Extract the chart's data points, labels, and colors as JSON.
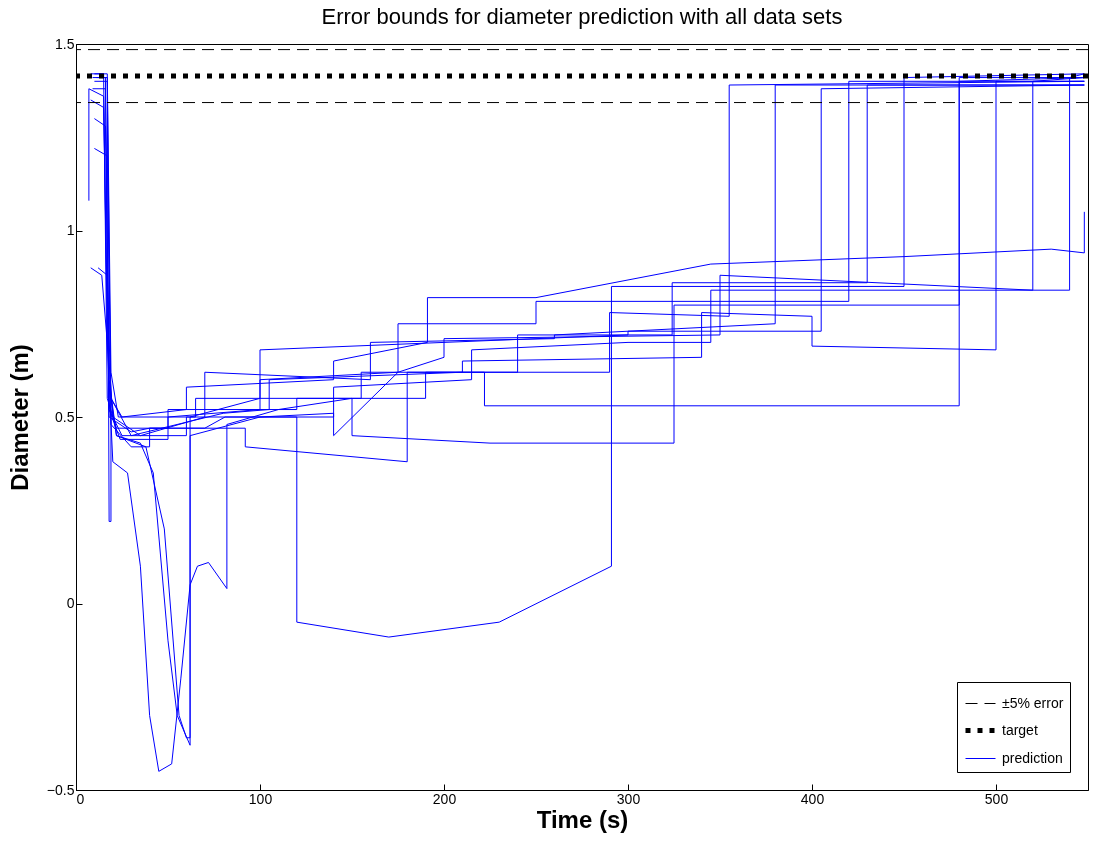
{
  "chart_data": {
    "type": "line",
    "title": "Error bounds for diameter prediction with all data sets",
    "xlabel": "Time (s)",
    "ylabel": "Diameter (m)",
    "xlim": [
      0,
      550
    ],
    "xticks": [
      0,
      100,
      200,
      300,
      400,
      500
    ],
    "ylim": [
      -0.5,
      1.5
    ],
    "yticks": [
      {
        "value": -0.5,
        "label": "−0.5"
      },
      0,
      0.5,
      1,
      1.5
    ],
    "grid": false,
    "legend": "bottom right",
    "marker": "none",
    "line_style": "solid",
    "ref_lines": [
      {
        "axis": "y",
        "value": 1.485,
        "label": "±5% error",
        "color": "#000000",
        "line_style": "dashed"
      },
      {
        "axis": "y",
        "value": 1.414,
        "label": "target",
        "color": "#000000",
        "line_style": "dotted"
      },
      {
        "axis": "y",
        "value": 1.343,
        "color": "#000000",
        "line_style": "dashed"
      }
    ],
    "series": [
      {
        "name": "prediction",
        "color": "#0000ff",
        "x": [
          8,
          15,
          17,
          22,
          50,
          50,
          120,
          120,
          190,
          190,
          290,
          290,
          355,
          355,
          548,
          null,
          9,
          16,
          18,
          25,
          60,
          60,
          140,
          140,
          215,
          215,
          300,
          345,
          345,
          540,
          540,
          548,
          null,
          10,
          17,
          19,
          30,
          40,
          40,
          92,
          92,
          180,
          180,
          240,
          240,
          324,
          324,
          430,
          430,
          548,
          null,
          9,
          16,
          18,
          30,
          40,
          70,
          81,
          120,
          120,
          170,
          230,
          291,
          291,
          450,
          450,
          548,
          null,
          8,
          14,
          17,
          20,
          28,
          35,
          40,
          45,
          52,
          57,
          62,
          66,
          72,
          82,
          82,
          110,
          150,
          150,
          225,
          325,
          325,
          480,
          480,
          548,
          null,
          10,
          16,
          18,
          22,
          35,
          42,
          50,
          55,
          62,
          62,
          100,
          140,
          140,
          175,
          200,
          200,
          350,
          350,
          520,
          520,
          548,
          null,
          10,
          17,
          19,
          22,
          38,
          48,
          56,
          60,
          62,
          62,
          100,
          100,
          175,
          175,
          250,
          250,
          420,
          420,
          548,
          null,
          12,
          17,
          19,
          25,
          60,
          60,
          140,
          140,
          191,
          191,
          250,
          345,
          450,
          530,
          548,
          548,
          null,
          10,
          17,
          19,
          23,
          65,
          65,
          155,
          155,
          222,
          222,
          480,
          480,
          548,
          null,
          8,
          15,
          18,
          24,
          50,
          50,
          100,
          100,
          300,
          300,
          405,
          405,
          548,
          null,
          11,
          17,
          18,
          19,
          19,
          30,
          80,
          105,
          105,
          210,
          210,
          340,
          340,
          400,
          400,
          500,
          500,
          548,
          null,
          7,
          7,
          15,
          17,
          20,
          35,
          70,
          70,
          160,
          160,
          260,
          260,
          380,
          380,
          548
        ],
        "values": [
          1.42,
          1.42,
          0.55,
          0.47,
          0.47,
          0.52,
          0.52,
          0.55,
          0.55,
          0.62,
          0.62,
          0.78,
          0.77,
          1.39,
          1.4,
          null,
          1.41,
          1.41,
          0.52,
          0.45,
          0.45,
          0.5,
          0.5,
          0.58,
          0.6,
          0.68,
          0.7,
          0.7,
          0.84,
          0.84,
          1.41,
          1.42,
          null,
          1.4,
          1.4,
          0.48,
          0.42,
          0.42,
          0.47,
          0.47,
          0.42,
          0.38,
          0.62,
          0.62,
          0.72,
          0.72,
          0.86,
          0.86,
          1.39,
          1.39,
          null,
          1.38,
          1.38,
          0.5,
          0.46,
          0.47,
          0.47,
          0.5,
          0.5,
          -0.05,
          -0.09,
          -0.05,
          0.1,
          0.85,
          0.85,
          1.41,
          1.42,
          null,
          0.9,
          0.88,
          0.7,
          0.38,
          0.35,
          0.1,
          -0.3,
          -0.45,
          -0.43,
          -0.2,
          0.05,
          0.1,
          0.11,
          0.04,
          0.48,
          0.52,
          0.55,
          0.45,
          0.43,
          0.43,
          0.8,
          0.8,
          1.41,
          1.41,
          null,
          1.3,
          1.28,
          0.6,
          0.45,
          0.43,
          0.35,
          -0.1,
          -0.3,
          -0.38,
          0.45,
          0.5,
          0.51,
          0.45,
          0.62,
          0.66,
          0.71,
          0.72,
          0.88,
          0.84,
          1.4,
          1.41,
          null,
          1.22,
          1.2,
          0.55,
          0.45,
          0.42,
          0.2,
          -0.3,
          -0.36,
          -0.36,
          0.5,
          0.55,
          0.6,
          0.62,
          0.75,
          0.75,
          0.81,
          0.81,
          1.4,
          1.4,
          null,
          0.9,
          0.88,
          0.55,
          0.5,
          0.52,
          0.58,
          0.6,
          0.65,
          0.7,
          0.82,
          0.82,
          0.91,
          0.93,
          0.95,
          0.94,
          1.05,
          null,
          1.42,
          1.42,
          0.62,
          0.5,
          0.5,
          0.55,
          0.55,
          0.62,
          0.62,
          0.53,
          0.53,
          1.4,
          1.41,
          null,
          1.35,
          1.33,
          0.52,
          0.44,
          0.44,
          0.5,
          0.52,
          0.68,
          0.72,
          0.73,
          0.73,
          1.38,
          1.39,
          null,
          1.41,
          1.41,
          0.22,
          0.22,
          0.55,
          0.45,
          0.51,
          0.52,
          0.6,
          0.62,
          0.65,
          0.66,
          0.78,
          0.77,
          0.69,
          0.68,
          1.4,
          1.4,
          null,
          1.08,
          1.38,
          1.36,
          0.72,
          0.5,
          0.45,
          0.5,
          0.62,
          0.6,
          0.7,
          0.71,
          0.72,
          0.75,
          1.39,
          1.39
        ]
      }
    ]
  }
}
